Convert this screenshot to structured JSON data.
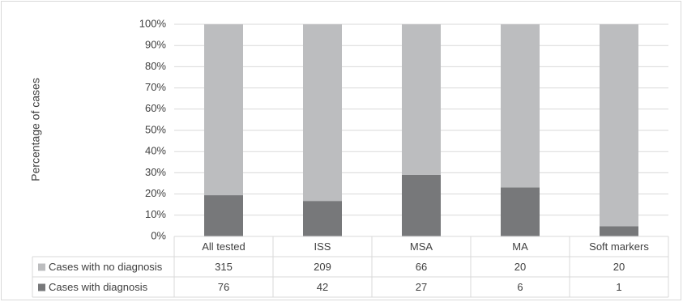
{
  "chart_data": {
    "type": "stacked_percent_bar",
    "y_axis_label": "Percentage of cases",
    "categories": [
      "All tested",
      "ISS",
      "MSA",
      "MA",
      "Soft markers"
    ],
    "series": [
      {
        "name": "Cases with no diagnosis",
        "color": "#bcbdbf",
        "values": [
          315,
          209,
          66,
          20,
          20
        ]
      },
      {
        "name": "Cases with diagnosis",
        "color": "#77787a",
        "values": [
          76,
          42,
          27,
          6,
          1
        ]
      }
    ],
    "ylim": [
      0,
      100
    ],
    "yticks": [
      {
        "value": 0,
        "label": "0%"
      },
      {
        "value": 10,
        "label": "10%"
      },
      {
        "value": 20,
        "label": "20%"
      },
      {
        "value": 30,
        "label": "30%"
      },
      {
        "value": 40,
        "label": "40%"
      },
      {
        "value": 50,
        "label": "50%"
      },
      {
        "value": 60,
        "label": "60%"
      },
      {
        "value": 70,
        "label": "70%"
      },
      {
        "value": 80,
        "label": "80%"
      },
      {
        "value": 90,
        "label": "90%"
      },
      {
        "value": 100,
        "label": "100%"
      }
    ],
    "grid": true,
    "data_table": true
  }
}
